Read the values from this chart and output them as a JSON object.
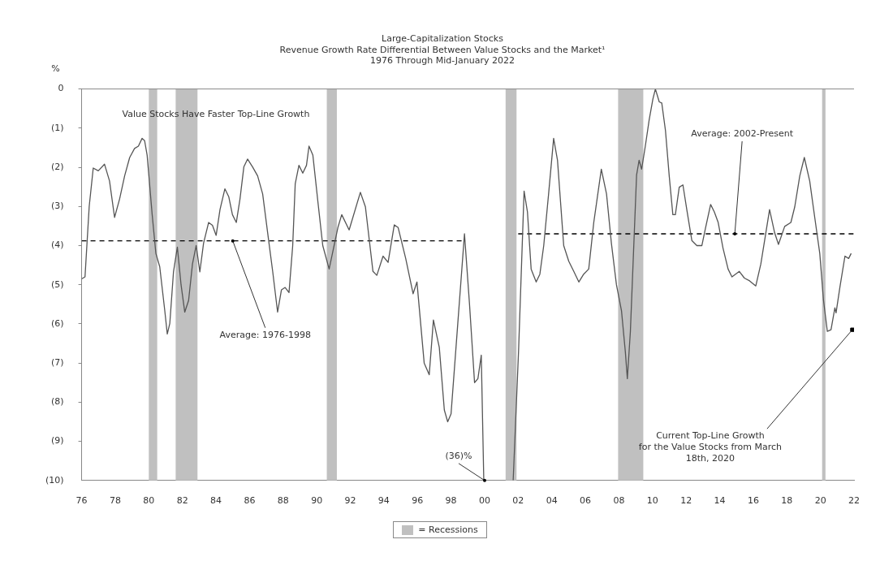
{
  "chart_data": {
    "type": "line",
    "title": "Large-Capitalization Stocks",
    "subtitle": "Revenue Growth Rate Differential Between Value Stocks and the Market¹\n1976 Through Mid-January 2022",
    "ylabel": "%",
    "xlim": [
      1976,
      2022
    ],
    "ylim": [
      -10,
      0
    ],
    "xticks": [
      {
        "value": 1976,
        "label": "76"
      },
      {
        "value": 1978,
        "label": "78"
      },
      {
        "value": 1980,
        "label": "80"
      },
      {
        "value": 1982,
        "label": "82"
      },
      {
        "value": 1984,
        "label": "84"
      },
      {
        "value": 1986,
        "label": "86"
      },
      {
        "value": 1988,
        "label": "88"
      },
      {
        "value": 1990,
        "label": "90"
      },
      {
        "value": 1992,
        "label": "92"
      },
      {
        "value": 1994,
        "label": "94"
      },
      {
        "value": 1996,
        "label": "96"
      },
      {
        "value": 1998,
        "label": "98"
      },
      {
        "value": 2000,
        "label": "00"
      },
      {
        "value": 2002,
        "label": "02"
      },
      {
        "value": 2004,
        "label": "04"
      },
      {
        "value": 2006,
        "label": "06"
      },
      {
        "value": 2008,
        "label": "08"
      },
      {
        "value": 2010,
        "label": "10"
      },
      {
        "value": 2012,
        "label": "12"
      },
      {
        "value": 2014,
        "label": "14"
      },
      {
        "value": 2016,
        "label": "16"
      },
      {
        "value": 2018,
        "label": "18"
      },
      {
        "value": 2020,
        "label": "20"
      },
      {
        "value": 2022,
        "label": "22"
      }
    ],
    "yticks": [
      0,
      {
        "value": -1,
        "label": "(1)"
      },
      {
        "value": -2,
        "label": "(2)"
      },
      {
        "value": -3,
        "label": "(3)"
      },
      {
        "value": -4,
        "label": "(4)"
      },
      {
        "value": -5,
        "label": "(5)"
      },
      {
        "value": -6,
        "label": "(6)"
      },
      {
        "value": -7,
        "label": "(7)"
      },
      {
        "value": -8,
        "label": "(8)"
      },
      {
        "value": -9,
        "label": "(9)"
      },
      {
        "value": -10,
        "label": "(10)"
      }
    ],
    "marker": "none",
    "series": [
      {
        "color": "#555555",
        "line_style": "solid",
        "x": [
          1976.0,
          1976.2,
          1976.45,
          1976.69,
          1976.99,
          1977.36,
          1977.66,
          1977.96,
          1978.26,
          1978.56,
          1978.86,
          1979.15,
          1979.38,
          1979.6,
          1979.75,
          1979.9,
          1980.2,
          1980.42,
          1980.65,
          1980.95,
          1981.1,
          1981.25,
          1981.47,
          1981.7,
          1981.92,
          1982.14,
          1982.37,
          1982.6,
          1982.82,
          1983.04,
          1983.26,
          1983.56,
          1983.79,
          1984.01,
          1984.24,
          1984.53,
          1984.76,
          1984.98,
          1985.21,
          1985.43,
          1985.66,
          1985.88,
          1986.18,
          1986.48,
          1986.78,
          1987.08,
          1987.38,
          1987.67,
          1987.9,
          1988.12,
          1988.35,
          1988.57,
          1988.72,
          1988.94,
          1989.17,
          1989.39,
          1989.54,
          1989.77,
          1990.07,
          1990.36,
          1990.74,
          1991.26,
          1991.49,
          1991.93,
          1992.6,
          1992.9,
          1993.35,
          1993.58,
          1993.95,
          1994.25,
          1994.62,
          1994.85,
          1995.3,
          1995.74,
          1995.97,
          1996.4,
          1996.7,
          1996.95,
          1997.3,
          1997.6,
          1997.8,
          1998.0,
          1998.4,
          1998.8,
          1999.1,
          1999.4,
          1999.6,
          1999.8,
          1999.95,
          2000.8,
          2001.7,
          2002.02,
          2002.35,
          2002.55,
          2002.77,
          2003.07,
          2003.29,
          2003.52,
          2003.81,
          2004.11,
          2004.34,
          2004.71,
          2005.01,
          2005.31,
          2005.61,
          2005.9,
          2006.2,
          2006.5,
          2006.95,
          2007.26,
          2007.55,
          2007.85,
          2008.15,
          2008.38,
          2008.5,
          2008.68,
          2009.05,
          2009.2,
          2009.35,
          2009.57,
          2009.8,
          2010.02,
          2010.17,
          2010.4,
          2010.55,
          2010.77,
          2011.0,
          2011.21,
          2011.36,
          2011.59,
          2011.81,
          2012.04,
          2012.34,
          2012.64,
          2012.94,
          2013.16,
          2013.46,
          2013.68,
          2013.91,
          2014.2,
          2014.5,
          2014.73,
          2015.17,
          2015.47,
          2015.78,
          2016.15,
          2016.45,
          2016.75,
          2016.97,
          2017.27,
          2017.5,
          2017.87,
          2018.24,
          2018.47,
          2018.77,
          2019.04,
          2019.36,
          2019.66,
          2019.96,
          2020.18,
          2020.41,
          2020.63,
          2020.86,
          2020.93,
          2021.16,
          2021.46,
          2021.68,
          2021.83
        ],
        "values": [
          -4.85,
          -4.8,
          -3.0,
          -2.02,
          -2.09,
          -1.92,
          -2.35,
          -3.28,
          -2.81,
          -2.22,
          -1.75,
          -1.52,
          -1.46,
          -1.26,
          -1.32,
          -1.69,
          -3.21,
          -4.2,
          -4.54,
          -5.66,
          -6.26,
          -5.99,
          -4.67,
          -4.04,
          -5.0,
          -5.7,
          -5.4,
          -4.47,
          -4.0,
          -4.67,
          -3.94,
          -3.41,
          -3.48,
          -3.74,
          -3.08,
          -2.55,
          -2.75,
          -3.21,
          -3.41,
          -2.81,
          -1.99,
          -1.79,
          -1.99,
          -2.22,
          -2.68,
          -3.68,
          -4.67,
          -5.7,
          -5.13,
          -5.07,
          -5.2,
          -4.0,
          -2.42,
          -1.95,
          -2.15,
          -1.95,
          -1.46,
          -1.69,
          -2.88,
          -4.0,
          -4.6,
          -3.54,
          -3.21,
          -3.6,
          -2.64,
          -3.01,
          -4.66,
          -4.76,
          -4.27,
          -4.43,
          -3.47,
          -3.54,
          -4.33,
          -5.23,
          -4.93,
          -7.0,
          -7.3,
          -5.9,
          -6.6,
          -8.2,
          -8.5,
          -8.3,
          -6.0,
          -3.7,
          -5.5,
          -7.5,
          -7.4,
          -6.8,
          -10,
          null,
          -10,
          -6.7,
          -2.61,
          -3.14,
          -4.6,
          -4.93,
          -4.73,
          -4.0,
          -2.68,
          -1.26,
          -1.82,
          -4.0,
          -4.4,
          -4.66,
          -4.93,
          -4.73,
          -4.6,
          -3.41,
          -2.05,
          -2.68,
          -3.94,
          -5.0,
          -5.66,
          -6.71,
          -7.4,
          -6.2,
          -2.2,
          -1.82,
          -2.05,
          -1.46,
          -0.79,
          -0.26,
          0,
          -0.33,
          -0.36,
          -1.06,
          -2.25,
          -3.21,
          -3.21,
          -2.51,
          -2.45,
          -3.08,
          -3.87,
          -4.0,
          -4.0,
          -3.54,
          -2.95,
          -3.14,
          -3.41,
          -4.07,
          -4.6,
          -4.8,
          -4.66,
          -4.83,
          -4.9,
          -5.03,
          -4.47,
          -3.67,
          -3.08,
          -3.67,
          -3.97,
          -3.51,
          -3.41,
          -3.01,
          -2.22,
          -1.75,
          -2.35,
          -3.28,
          -4.2,
          -5.39,
          -6.19,
          -6.15,
          -5.59,
          -5.72,
          -5.06,
          -4.27,
          -4.33,
          -4.2
        ]
      },
      {
        "color": "#000000",
        "line_style": "dashed",
        "x": [
          1976,
          1998.8
        ],
        "values": [
          -3.88,
          -3.88
        ]
      },
      {
        "color": "#000000",
        "line_style": "dashed",
        "x": [
          2002,
          2022
        ],
        "values": [
          -3.7,
          -3.7
        ]
      },
      {
        "type": "scatter",
        "color": "#000000",
        "marker": "square",
        "x": [
          2021.9
        ],
        "values": [
          -6.15
        ]
      }
    ],
    "bands": [
      {
        "axis": "x",
        "from": 1980.0,
        "to": 1980.5,
        "color": "#c0c0c0",
        "label": "= Recessions"
      },
      {
        "axis": "x",
        "from": 1981.6,
        "to": 1982.9,
        "color": "#c0c0c0"
      },
      {
        "axis": "x",
        "from": 1990.6,
        "to": 1991.2,
        "color": "#c0c0c0"
      },
      {
        "axis": "x",
        "from": 2001.25,
        "to": 2001.9,
        "color": "#c0c0c0"
      },
      {
        "axis": "x",
        "from": 2007.95,
        "to": 2009.45,
        "color": "#c0c0c0"
      },
      {
        "axis": "x",
        "from": 2020.1,
        "to": 2020.3,
        "color": "#c0c0c0"
      }
    ],
    "annotations": [
      "Value Stocks Have Faster Top-Line Growth",
      {
        "text": "Average: 1976-1998",
        "x": 1985,
        "y": -3.88
      },
      {
        "text": "Average: 2002-Present",
        "x": 2014.9,
        "y": -3.7
      },
      {
        "text": "(36)%",
        "x": 2000,
        "y": -10
      },
      {
        "text": "Current Top-Line Growth\nfor the Value Stocks from March\n18th, 2020",
        "x": 2021.9,
        "y": -6.15
      }
    ]
  }
}
